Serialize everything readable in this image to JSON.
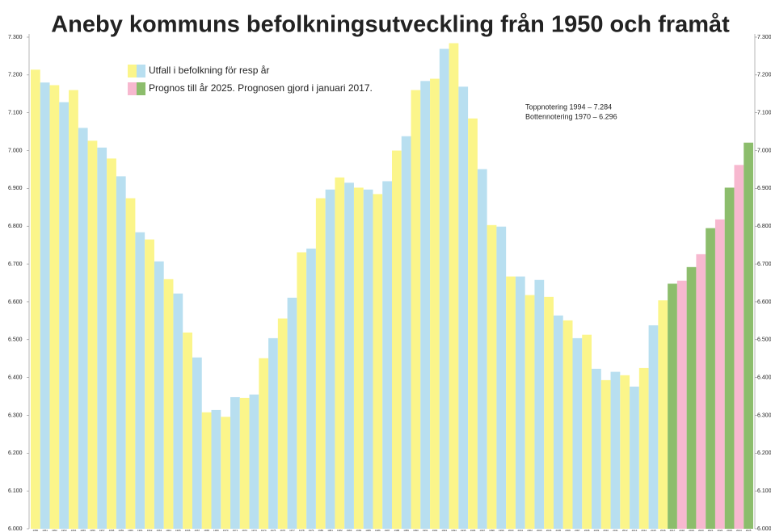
{
  "chart_data": {
    "type": "bar",
    "title": "Aneby kommuns befolkningsutveckling från 1950 och framåt",
    "annotations": [
      "Toppnotering 1994 – 7.284",
      "Bottennotering 1970 – 6.296"
    ],
    "categories": [
      "1950",
      "1951",
      "1952",
      "1953",
      "1954",
      "1955",
      "1956",
      "1957",
      "1958",
      "1959",
      "1960",
      "1961",
      "1962",
      "1963",
      "1964",
      "1965",
      "1966",
      "1967",
      "1968",
      "1969",
      "1970",
      "1971",
      "1972",
      "1973",
      "1974",
      "1975",
      "1976",
      "1977",
      "1978",
      "1979",
      "1980",
      "1981",
      "1982",
      "1983",
      "1984",
      "1985",
      "1986",
      "1987",
      "1988",
      "1989",
      "1990",
      "1991",
      "1992",
      "1993",
      "1994",
      "1995",
      "1996",
      "1997",
      "1998",
      "1999",
      "2000",
      "2001",
      "2002",
      "2003",
      "2004",
      "2005",
      "2006",
      "2007",
      "2008",
      "2009",
      "2010",
      "2011",
      "2012",
      "2013",
      "2014",
      "2015",
      "2016",
      "2017",
      "2018",
      "2019",
      "2020",
      "2021",
      "2022",
      "2023",
      "2024",
      "2025"
    ],
    "series": [
      {
        "name": "Utfall i befolkning för resp år",
        "colors": [
          "#fbf58a",
          "#b8dff0"
        ],
        "values": [
          7214,
          7180,
          7173,
          7128,
          7160,
          7060,
          7026,
          7008,
          6979,
          6932,
          6874,
          6784,
          6765,
          6707,
          6660,
          6622,
          6519,
          6453,
          6308,
          6314,
          6296,
          6348,
          6346,
          6355,
          6451,
          6504,
          6556,
          6611,
          6731,
          6741,
          6874,
          6897,
          6929,
          6915,
          6902,
          6897,
          6885,
          6919,
          7000,
          7038,
          7160,
          7184,
          7190,
          7269,
          7284,
          7169,
          7085,
          6951,
          6803,
          6799,
          6667,
          6667,
          6618,
          6658,
          6613,
          6564,
          6551,
          6504,
          6513,
          6423,
          6393,
          6415,
          6406,
          6376,
          6425,
          6538,
          6604,
          null,
          null,
          null,
          null,
          null,
          null,
          null,
          null,
          null
        ]
      },
      {
        "name": "Prognos till år 2025. Prognosen gjord i januari 2017.",
        "colors": [
          "#f7b8cf",
          "#8cbd6c"
        ],
        "values": [
          null,
          null,
          null,
          null,
          null,
          null,
          null,
          null,
          null,
          null,
          null,
          null,
          null,
          null,
          null,
          null,
          null,
          null,
          null,
          null,
          null,
          null,
          null,
          null,
          null,
          null,
          null,
          null,
          null,
          null,
          null,
          null,
          null,
          null,
          null,
          null,
          null,
          null,
          null,
          null,
          null,
          null,
          null,
          null,
          null,
          null,
          null,
          null,
          null,
          null,
          null,
          null,
          null,
          null,
          null,
          null,
          null,
          null,
          null,
          null,
          null,
          null,
          null,
          null,
          null,
          null,
          null,
          6648,
          6656,
          6692,
          6726,
          6795,
          6818,
          6902,
          6962,
          7021
        ]
      }
    ],
    "ylim": [
      6000,
      7300
    ],
    "yticks": [
      {
        "value": 6000,
        "label": "6.000"
      },
      {
        "value": 6100,
        "label": "6.100"
      },
      {
        "value": 6200,
        "label": "6.200"
      },
      {
        "value": 6300,
        "label": "6.300"
      },
      {
        "value": 6400,
        "label": "6.400"
      },
      {
        "value": 6500,
        "label": "6.500"
      },
      {
        "value": 6600,
        "label": "6.600"
      },
      {
        "value": 6700,
        "label": "6.700"
      },
      {
        "value": 6800,
        "label": "6.800"
      },
      {
        "value": 6900,
        "label": "6.900"
      },
      {
        "value": 7000,
        "label": "7.000"
      },
      {
        "value": 7100,
        "label": "7.100"
      },
      {
        "value": 7200,
        "label": "7.200"
      },
      {
        "value": 7300,
        "label": "7.300"
      }
    ],
    "legend": "top-left"
  }
}
